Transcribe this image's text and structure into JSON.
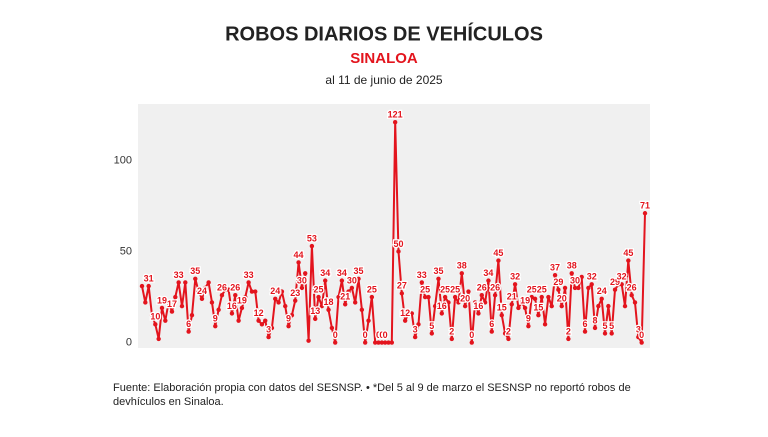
{
  "chart_data": {
    "type": "line",
    "title": "ROBOS DIARIOS DE VEHÍCULOS",
    "subtitle": "SINALOA",
    "date_note": "al 11 de junio de 2025",
    "source": "Fuente: Elaboración propia con datos del SESNSP. • *Del 5 al 9 de marzo el SESNSP no reportó robos de devhículos en Sinaloa.",
    "color": "#e3141d",
    "values": [
      31,
      22,
      31,
      15,
      10,
      2,
      19,
      12,
      22,
      17,
      25,
      33,
      20,
      33,
      6,
      15,
      35,
      28,
      24,
      30,
      33,
      22,
      9,
      18,
      26,
      29,
      29,
      16,
      26,
      12,
      19,
      25,
      33,
      28,
      28,
      12,
      10,
      12,
      3,
      8,
      24,
      22,
      28,
      20,
      9,
      15,
      23,
      44,
      30,
      38,
      1,
      53,
      13,
      25,
      20,
      34,
      18,
      8,
      0,
      25,
      34,
      21,
      28,
      30,
      22,
      35,
      18,
      0,
      12,
      25,
      0,
      0,
      0,
      0,
      0,
      0,
      121,
      50,
      27,
      12,
      16,
      16,
      3,
      10,
      33,
      25,
      25,
      5,
      20,
      35,
      16,
      25,
      22,
      2,
      25,
      22,
      38,
      20,
      28,
      0,
      22,
      16,
      26,
      22,
      34,
      6,
      26,
      45,
      15,
      5,
      2,
      21,
      32,
      19,
      22,
      19,
      9,
      25,
      24,
      15,
      25,
      10,
      25,
      20,
      37,
      29,
      20,
      30,
      2,
      38,
      30,
      30,
      36,
      6,
      30,
      32,
      8,
      20,
      24,
      5,
      20,
      5,
      29,
      32,
      32,
      20,
      45,
      26,
      22,
      3,
      0,
      71
    ],
    "value_labels": [
      null,
      null,
      "31",
      null,
      "10",
      null,
      "19",
      null,
      null,
      "17",
      null,
      "33",
      null,
      null,
      "6",
      null,
      "35",
      null,
      "24",
      null,
      null,
      null,
      "9",
      null,
      "26",
      null,
      null,
      "16",
      "26",
      null,
      "19",
      null,
      "33",
      null,
      null,
      "12",
      null,
      null,
      "3",
      null,
      "24",
      null,
      null,
      null,
      "9",
      null,
      "23",
      "44",
      "30",
      null,
      null,
      "53",
      "13",
      "25",
      null,
      "34",
      "18",
      null,
      "0",
      null,
      "34",
      "21",
      null,
      "30",
      null,
      "35",
      null,
      "0",
      null,
      "25",
      null,
      "0",
      "0",
      "0",
      null,
      null,
      "121",
      "50",
      "27",
      "12",
      null,
      null,
      "3",
      null,
      "33",
      "25",
      null,
      "5",
      null,
      "35",
      "16",
      "25",
      null,
      "2",
      "25",
      null,
      "38",
      "20",
      null,
      "0",
      null,
      "16",
      "26",
      null,
      "34",
      "6",
      "26",
      "45",
      "15",
      null,
      "2",
      "21",
      "32",
      null,
      null,
      "19",
      "9",
      "25",
      null,
      "15",
      "25",
      null,
      null,
      null,
      "37",
      "29",
      "20",
      null,
      "2",
      "38",
      "30",
      null,
      null,
      "6",
      null,
      "32",
      "8",
      null,
      "24",
      "5",
      null,
      "5",
      "29",
      null,
      "32",
      null,
      "45",
      "26",
      null,
      "3",
      "0",
      "71"
    ],
    "ylim": [
      -3,
      131
    ],
    "yticks": [
      0,
      50,
      100
    ],
    "grid": false
  }
}
